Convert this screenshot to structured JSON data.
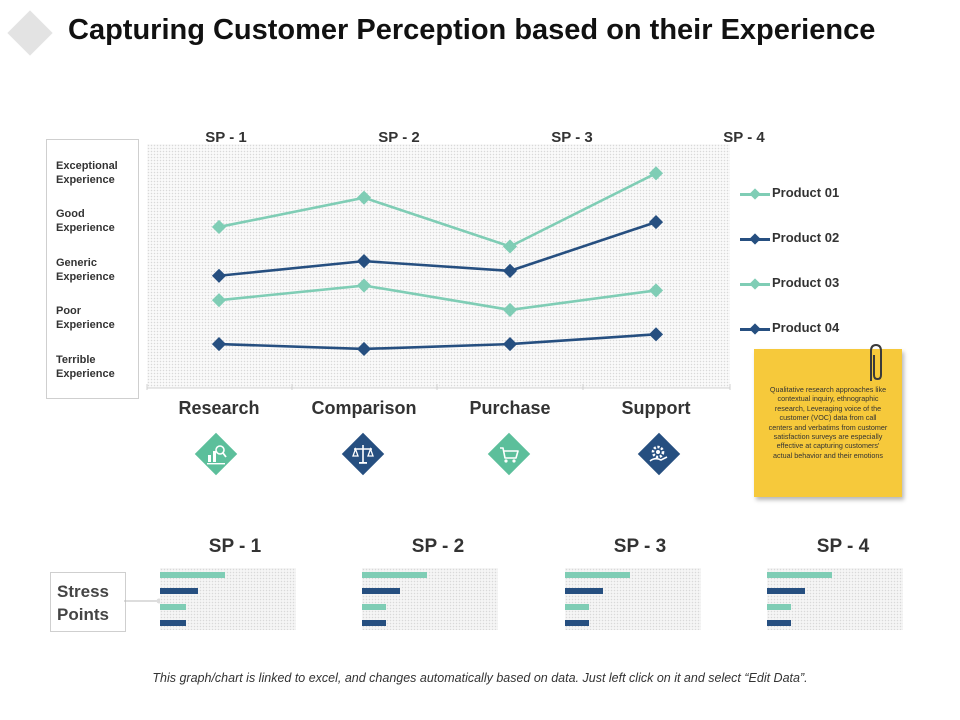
{
  "page": {
    "title": "Capturing Customer Perception based on their Experience",
    "footer": "This graph/chart is linked to excel, and changes automatically based on data.  Just left click on it and select “Edit Data”."
  },
  "scale_labels": [
    "Exceptional Experience",
    "Good Experience",
    "Generic Experience",
    "Poor Experience",
    "Terrible Experience"
  ],
  "stress_label": "Stress Points",
  "note": {
    "text": "Qualitative research approaches like contextual inquiry, ethnographic research, Leveraging voice of the customer (VOC) data from call centers and verbatims from customer satisfaction surveys are especially effective at capturing customers' actual behavior and their emotions"
  },
  "stage_icons": [
    "analytics-icon",
    "balance-scale-icon",
    "cart-icon",
    "gear-support-icon"
  ],
  "colors": {
    "light": "#7fcdb5",
    "dark": "#264f80",
    "note": "#f6c93b"
  },
  "chart_data": [
    {
      "type": "line",
      "title": "",
      "categories": [
        "Research",
        "Comparison",
        "Purchase",
        "Support"
      ],
      "top_labels": [
        "SP - 1",
        "SP - 2",
        "SP - 3",
        "SP - 4"
      ],
      "ylim": [
        0,
        5
      ],
      "y_tick_labels": [
        "Exceptional Experience",
        "Good Experience",
        "Generic Experience",
        "Poor Experience",
        "Terrible Experience"
      ],
      "legend_position": "right",
      "series": [
        {
          "name": "Product 01",
          "color": "#7fcdb5",
          "values": [
            3.3,
            3.9,
            2.9,
            4.4
          ]
        },
        {
          "name": "Product 02",
          "color": "#264f80",
          "values": [
            2.3,
            2.6,
            2.4,
            3.4
          ]
        },
        {
          "name": "Product 03",
          "color": "#7fcdb5",
          "values": [
            1.8,
            2.1,
            1.6,
            2.0
          ]
        },
        {
          "name": "Product 04",
          "color": "#264f80",
          "values": [
            0.9,
            0.8,
            0.9,
            1.1
          ]
        }
      ]
    },
    {
      "type": "bar",
      "orientation": "horizontal",
      "title": "Stress Points",
      "panels": [
        "SP - 1",
        "SP - 2",
        "SP - 3",
        "SP - 4"
      ],
      "xlim": [
        0,
        100
      ],
      "series": [
        {
          "name": "Product 01",
          "color": "#7fcdb5",
          "values": [
            48,
            48,
            48,
            48
          ]
        },
        {
          "name": "Product 02",
          "color": "#264f80",
          "values": [
            28,
            28,
            28,
            28
          ]
        },
        {
          "name": "Product 03",
          "color": "#7fcdb5",
          "values": [
            19,
            18,
            18,
            18
          ]
        },
        {
          "name": "Product 04",
          "color": "#264f80",
          "values": [
            19,
            18,
            18,
            18
          ]
        }
      ]
    }
  ]
}
